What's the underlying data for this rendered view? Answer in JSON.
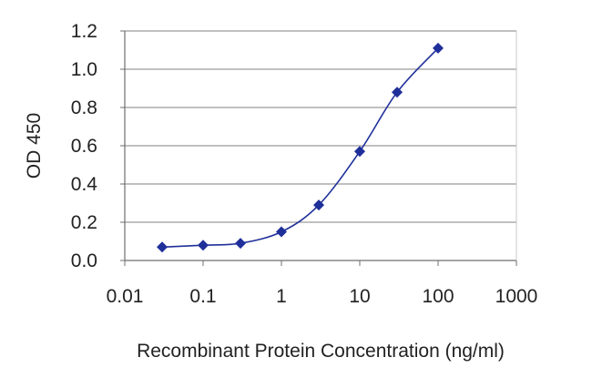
{
  "chart_data": {
    "type": "line",
    "title": "",
    "xlabel": "Recombinant Protein Concentration (ng/ml)",
    "ylabel": "OD 450",
    "x_scale": "log",
    "xlim": [
      0.01,
      1000
    ],
    "ylim": [
      0.0,
      1.2
    ],
    "x_tick_labels": [
      "0.01",
      "0.1",
      "1",
      "10",
      "100",
      "1000"
    ],
    "y_tick_labels": [
      "0.0",
      "0.2",
      "0.4",
      "0.6",
      "0.8",
      "1.0",
      "1.2"
    ],
    "grid": "horizontal",
    "legend": "none",
    "series": [
      {
        "x": [
          0.03,
          0.1,
          0.3,
          1,
          3,
          10,
          30,
          100
        ],
        "y": [
          0.07,
          0.08,
          0.09,
          0.15,
          0.29,
          0.57,
          0.88,
          1.11
        ]
      }
    ],
    "colors": {
      "line": "#1f2f9a",
      "marker": "#1f2f9a",
      "grid": "#9a9a9a",
      "axis": "#6f6f6f",
      "text": "#222222"
    }
  }
}
